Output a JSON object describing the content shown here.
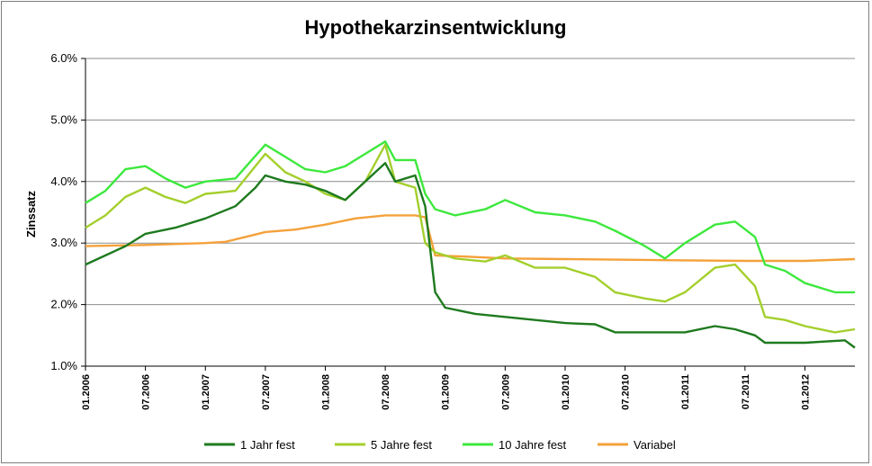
{
  "chart_data": {
    "type": "line",
    "title": "Hypothekarzinsentwicklung",
    "xlabel": "",
    "ylabel": "Zinssatz",
    "ylim": [
      1.0,
      6.0
    ],
    "xlim": [
      "2006-01",
      "2012-06"
    ],
    "y_ticks": [
      "1.0%",
      "2.0%",
      "3.0%",
      "4.0%",
      "5.0%",
      "6.0%"
    ],
    "x_ticks": [
      "01.2006",
      "07.2006",
      "01.2007",
      "07.2007",
      "01.2008",
      "07.2008",
      "01.2009",
      "07.2009",
      "01.2010",
      "07.2010",
      "01.2011",
      "07.2011",
      "01.2012"
    ],
    "grid": "horizontal",
    "legend_position": "bottom",
    "series": [
      {
        "name": "1 Jahr fest",
        "color": "#1e7a1e",
        "points": [
          [
            "2006-01",
            2.65
          ],
          [
            "2006-03",
            2.8
          ],
          [
            "2006-05",
            2.95
          ],
          [
            "2006-07",
            3.15
          ],
          [
            "2006-10",
            3.25
          ],
          [
            "2007-01",
            3.4
          ],
          [
            "2007-04",
            3.6
          ],
          [
            "2007-06",
            3.9
          ],
          [
            "2007-07",
            4.1
          ],
          [
            "2007-09",
            4.0
          ],
          [
            "2007-11",
            3.95
          ],
          [
            "2008-01",
            3.85
          ],
          [
            "2008-03",
            3.7
          ],
          [
            "2008-05",
            4.0
          ],
          [
            "2008-07",
            4.3
          ],
          [
            "2008-08",
            4.0
          ],
          [
            "2008-10",
            4.1
          ],
          [
            "2008-11",
            3.6
          ],
          [
            "2008-12",
            2.2
          ],
          [
            "2009-01",
            1.95
          ],
          [
            "2009-04",
            1.85
          ],
          [
            "2009-07",
            1.8
          ],
          [
            "2009-10",
            1.75
          ],
          [
            "2010-01",
            1.7
          ],
          [
            "2010-04",
            1.68
          ],
          [
            "2010-06",
            1.55
          ],
          [
            "2010-09",
            1.55
          ],
          [
            "2011-01",
            1.55
          ],
          [
            "2011-04",
            1.65
          ],
          [
            "2011-06",
            1.6
          ],
          [
            "2011-08",
            1.5
          ],
          [
            "2011-09",
            1.38
          ],
          [
            "2011-11",
            1.38
          ],
          [
            "2012-01",
            1.38
          ],
          [
            "2012-05",
            1.42
          ],
          [
            "2012-06",
            1.3
          ]
        ]
      },
      {
        "name": "5 Jahre fest",
        "color": "#a3cf2c",
        "points": [
          [
            "2006-01",
            3.25
          ],
          [
            "2006-03",
            3.45
          ],
          [
            "2006-05",
            3.75
          ],
          [
            "2006-07",
            3.9
          ],
          [
            "2006-09",
            3.75
          ],
          [
            "2006-11",
            3.65
          ],
          [
            "2007-01",
            3.8
          ],
          [
            "2007-04",
            3.85
          ],
          [
            "2007-07",
            4.45
          ],
          [
            "2007-09",
            4.15
          ],
          [
            "2007-11",
            4.0
          ],
          [
            "2008-01",
            3.8
          ],
          [
            "2008-03",
            3.7
          ],
          [
            "2008-05",
            4.0
          ],
          [
            "2008-07",
            4.6
          ],
          [
            "2008-08",
            4.0
          ],
          [
            "2008-10",
            3.9
          ],
          [
            "2008-11",
            3.0
          ],
          [
            "2008-12",
            2.85
          ],
          [
            "2009-02",
            2.75
          ],
          [
            "2009-05",
            2.7
          ],
          [
            "2009-07",
            2.8
          ],
          [
            "2009-10",
            2.6
          ],
          [
            "2010-01",
            2.6
          ],
          [
            "2010-04",
            2.45
          ],
          [
            "2010-06",
            2.2
          ],
          [
            "2010-09",
            2.1
          ],
          [
            "2010-11",
            2.05
          ],
          [
            "2011-01",
            2.2
          ],
          [
            "2011-04",
            2.6
          ],
          [
            "2011-06",
            2.65
          ],
          [
            "2011-08",
            2.3
          ],
          [
            "2011-09",
            1.8
          ],
          [
            "2011-11",
            1.75
          ],
          [
            "2012-01",
            1.65
          ],
          [
            "2012-04",
            1.55
          ],
          [
            "2012-06",
            1.6
          ]
        ]
      },
      {
        "name": "10 Jahre fest",
        "color": "#3de83d",
        "points": [
          [
            "2006-01",
            3.65
          ],
          [
            "2006-03",
            3.85
          ],
          [
            "2006-05",
            4.2
          ],
          [
            "2006-07",
            4.25
          ],
          [
            "2006-09",
            4.05
          ],
          [
            "2006-11",
            3.9
          ],
          [
            "2007-01",
            4.0
          ],
          [
            "2007-04",
            4.05
          ],
          [
            "2007-07",
            4.6
          ],
          [
            "2007-09",
            4.4
          ],
          [
            "2007-11",
            4.2
          ],
          [
            "2008-01",
            4.15
          ],
          [
            "2008-03",
            4.25
          ],
          [
            "2008-05",
            4.45
          ],
          [
            "2008-07",
            4.65
          ],
          [
            "2008-08",
            4.35
          ],
          [
            "2008-10",
            4.35
          ],
          [
            "2008-11",
            3.8
          ],
          [
            "2008-12",
            3.55
          ],
          [
            "2009-02",
            3.45
          ],
          [
            "2009-05",
            3.55
          ],
          [
            "2009-07",
            3.7
          ],
          [
            "2009-10",
            3.5
          ],
          [
            "2010-01",
            3.45
          ],
          [
            "2010-04",
            3.35
          ],
          [
            "2010-06",
            3.2
          ],
          [
            "2010-09",
            2.95
          ],
          [
            "2010-11",
            2.75
          ],
          [
            "2011-01",
            3.0
          ],
          [
            "2011-04",
            3.3
          ],
          [
            "2011-06",
            3.35
          ],
          [
            "2011-08",
            3.1
          ],
          [
            "2011-09",
            2.65
          ],
          [
            "2011-11",
            2.55
          ],
          [
            "2012-01",
            2.35
          ],
          [
            "2012-04",
            2.2
          ],
          [
            "2012-06",
            2.2
          ]
        ]
      },
      {
        "name": "Variabel",
        "color": "#f4a13a",
        "points": [
          [
            "2006-01",
            2.95
          ],
          [
            "2006-07",
            2.97
          ],
          [
            "2007-01",
            3.0
          ],
          [
            "2007-03",
            3.02
          ],
          [
            "2007-05",
            3.1
          ],
          [
            "2007-07",
            3.18
          ],
          [
            "2007-10",
            3.22
          ],
          [
            "2008-01",
            3.3
          ],
          [
            "2008-04",
            3.4
          ],
          [
            "2008-07",
            3.45
          ],
          [
            "2008-10",
            3.45
          ],
          [
            "2008-11",
            3.42
          ],
          [
            "2008-12",
            2.8
          ],
          [
            "2009-03",
            2.78
          ],
          [
            "2009-07",
            2.75
          ],
          [
            "2010-01",
            2.74
          ],
          [
            "2010-07",
            2.73
          ],
          [
            "2011-01",
            2.72
          ],
          [
            "2011-07",
            2.71
          ],
          [
            "2012-01",
            2.71
          ],
          [
            "2012-06",
            2.74
          ]
        ]
      }
    ]
  }
}
